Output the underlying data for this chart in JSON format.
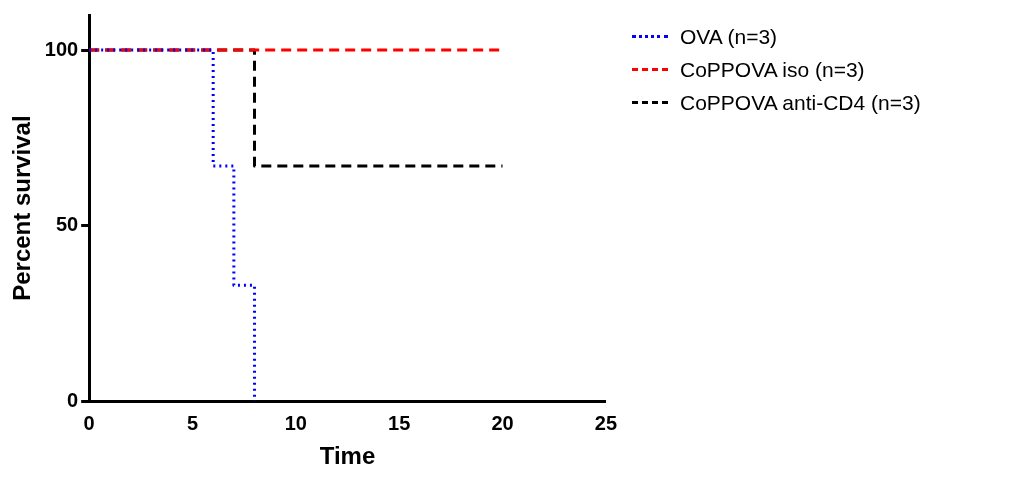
{
  "chart_data": {
    "type": "step",
    "xlabel": "Time",
    "ylabel": "Percent survival",
    "xlim": [
      0,
      25
    ],
    "xticks": [
      0,
      5,
      10,
      15,
      20,
      25
    ],
    "ylim": [
      0,
      110
    ],
    "yticks": [
      0,
      50,
      100
    ],
    "grid": false,
    "legend": "top right",
    "marker": "none",
    "series": [
      {
        "name": "OVA (n=3)",
        "color": "#0000ff",
        "line_style": "dotted",
        "x": [
          0,
          6,
          7,
          8
        ],
        "values": [
          100,
          67,
          33,
          0
        ]
      },
      {
        "name": "CoPPOVA iso (n=3)",
        "color": "#ff0000",
        "line_style": "dashed",
        "x": [
          0,
          20
        ],
        "values": [
          100,
          100
        ]
      },
      {
        "name": "CoPPOVA anti-CD4 (n=3)",
        "color": "#000000",
        "line_style": "dashed",
        "x": [
          0,
          8,
          20
        ],
        "values": [
          100,
          67,
          67
        ]
      }
    ]
  }
}
